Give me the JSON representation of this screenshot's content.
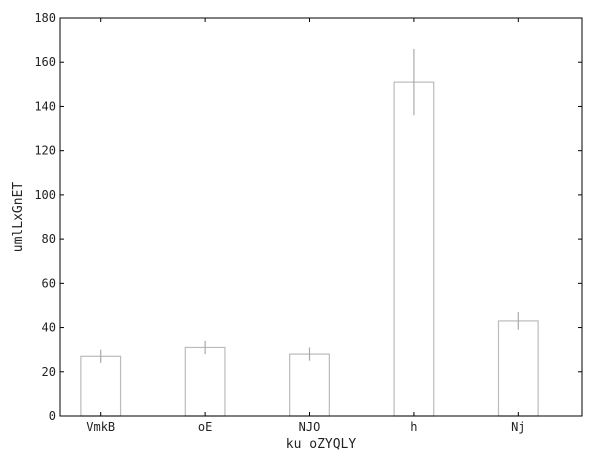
{
  "chart_data": {
    "type": "bar",
    "title": "",
    "xlabel": "ku oZYQLY",
    "ylabel": "umlLxGnET",
    "categories": [
      "VmkB",
      "oE",
      "NJO",
      "h",
      "Nj"
    ],
    "values": [
      27,
      31,
      28,
      151,
      43
    ],
    "errors": [
      3,
      3,
      3,
      15,
      4
    ],
    "ylim": [
      0,
      180
    ],
    "yticks": [
      0,
      20,
      40,
      60,
      80,
      100,
      120,
      140,
      160,
      180
    ],
    "grid": false,
    "legend": "none",
    "colors": {
      "bar_fill": "#ffffff",
      "bar_edge": "#bbbbbb",
      "error": "#aaaaaa",
      "axis": "#000000"
    }
  }
}
